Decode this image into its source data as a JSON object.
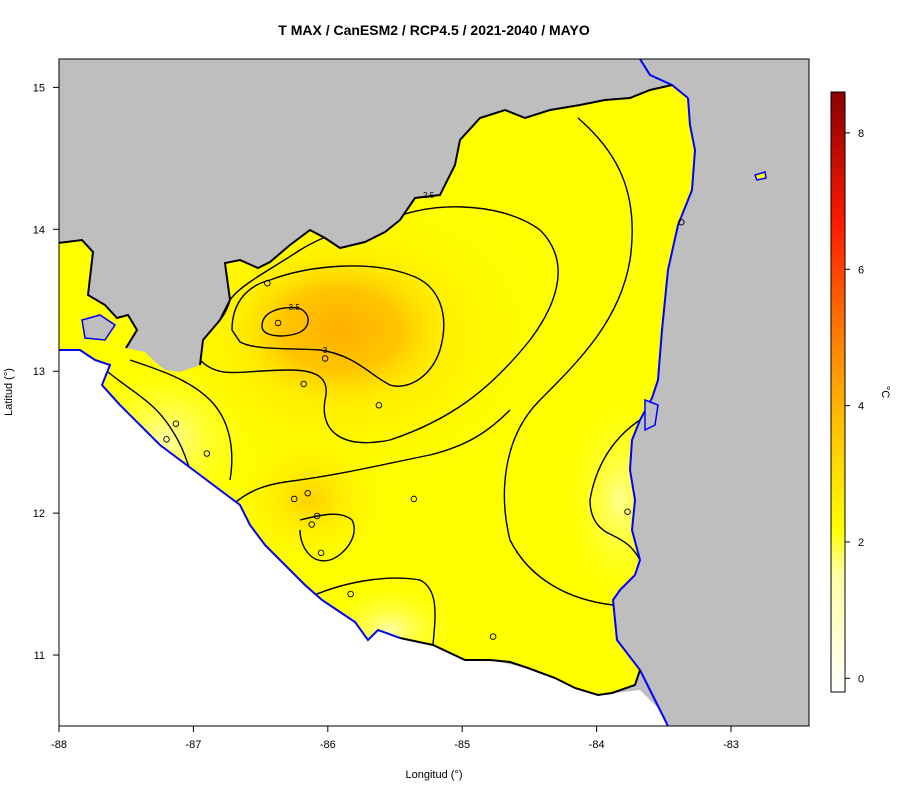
{
  "title": "T MAX / CanESM2 / RCP4.5 / 2021-2040 / MAYO",
  "xlabel": "Longitud (°)",
  "ylabel": "Latitud (°)",
  "colorbar_label": "°C",
  "x_ticks": [
    {
      "value": -88,
      "label": "-88"
    },
    {
      "value": -87,
      "label": "-87"
    },
    {
      "value": -86,
      "label": "-86"
    },
    {
      "value": -85,
      "label": "-85"
    },
    {
      "value": -84,
      "label": "-84"
    },
    {
      "value": -83,
      "label": "-83"
    }
  ],
  "y_ticks": [
    {
      "value": 15,
      "label": "15"
    },
    {
      "value": 14,
      "label": "14"
    },
    {
      "value": 13,
      "label": "13"
    },
    {
      "value": 12,
      "label": "12"
    },
    {
      "value": 11,
      "label": "11"
    }
  ],
  "colorbar_ticks": [
    {
      "value": 0,
      "label": "0"
    },
    {
      "value": 2,
      "label": "2"
    },
    {
      "value": 4,
      "label": "4"
    },
    {
      "value": 6,
      "label": "6"
    },
    {
      "value": 8,
      "label": "8"
    }
  ],
  "contour_labels": [
    {
      "label": "2.5",
      "lon": -85.25,
      "lat": 14.22
    },
    {
      "label": "3.5",
      "lon": -86.25,
      "lat": 13.43
    },
    {
      "label": "3",
      "lon": -86.02,
      "lat": 13.13
    }
  ],
  "stations": [
    {
      "lon": -86.45,
      "lat": 13.62
    },
    {
      "lon": -86.37,
      "lat": 13.34
    },
    {
      "lon": -86.02,
      "lat": 13.09
    },
    {
      "lon": -86.18,
      "lat": 12.91
    },
    {
      "lon": -85.62,
      "lat": 12.76
    },
    {
      "lon": -87.13,
      "lat": 12.63
    },
    {
      "lon": -87.2,
      "lat": 12.52
    },
    {
      "lon": -86.9,
      "lat": 12.42
    },
    {
      "lon": -86.25,
      "lat": 12.1
    },
    {
      "lon": -86.15,
      "lat": 12.14
    },
    {
      "lon": -85.36,
      "lat": 12.1
    },
    {
      "lon": -86.08,
      "lat": 11.98
    },
    {
      "lon": -86.12,
      "lat": 11.92
    },
    {
      "lon": -86.05,
      "lat": 11.72
    },
    {
      "lon": -85.83,
      "lat": 11.43
    },
    {
      "lon": -84.77,
      "lat": 11.13
    },
    {
      "lon": -83.77,
      "lat": 12.01
    },
    {
      "lon": -83.37,
      "lat": 14.05
    }
  ],
  "colors": {
    "background_land": "#bebebe",
    "country_fill": "#ffff00",
    "hotspot": "#ffb000",
    "coast": "#0000ff",
    "border": "#000000"
  }
}
